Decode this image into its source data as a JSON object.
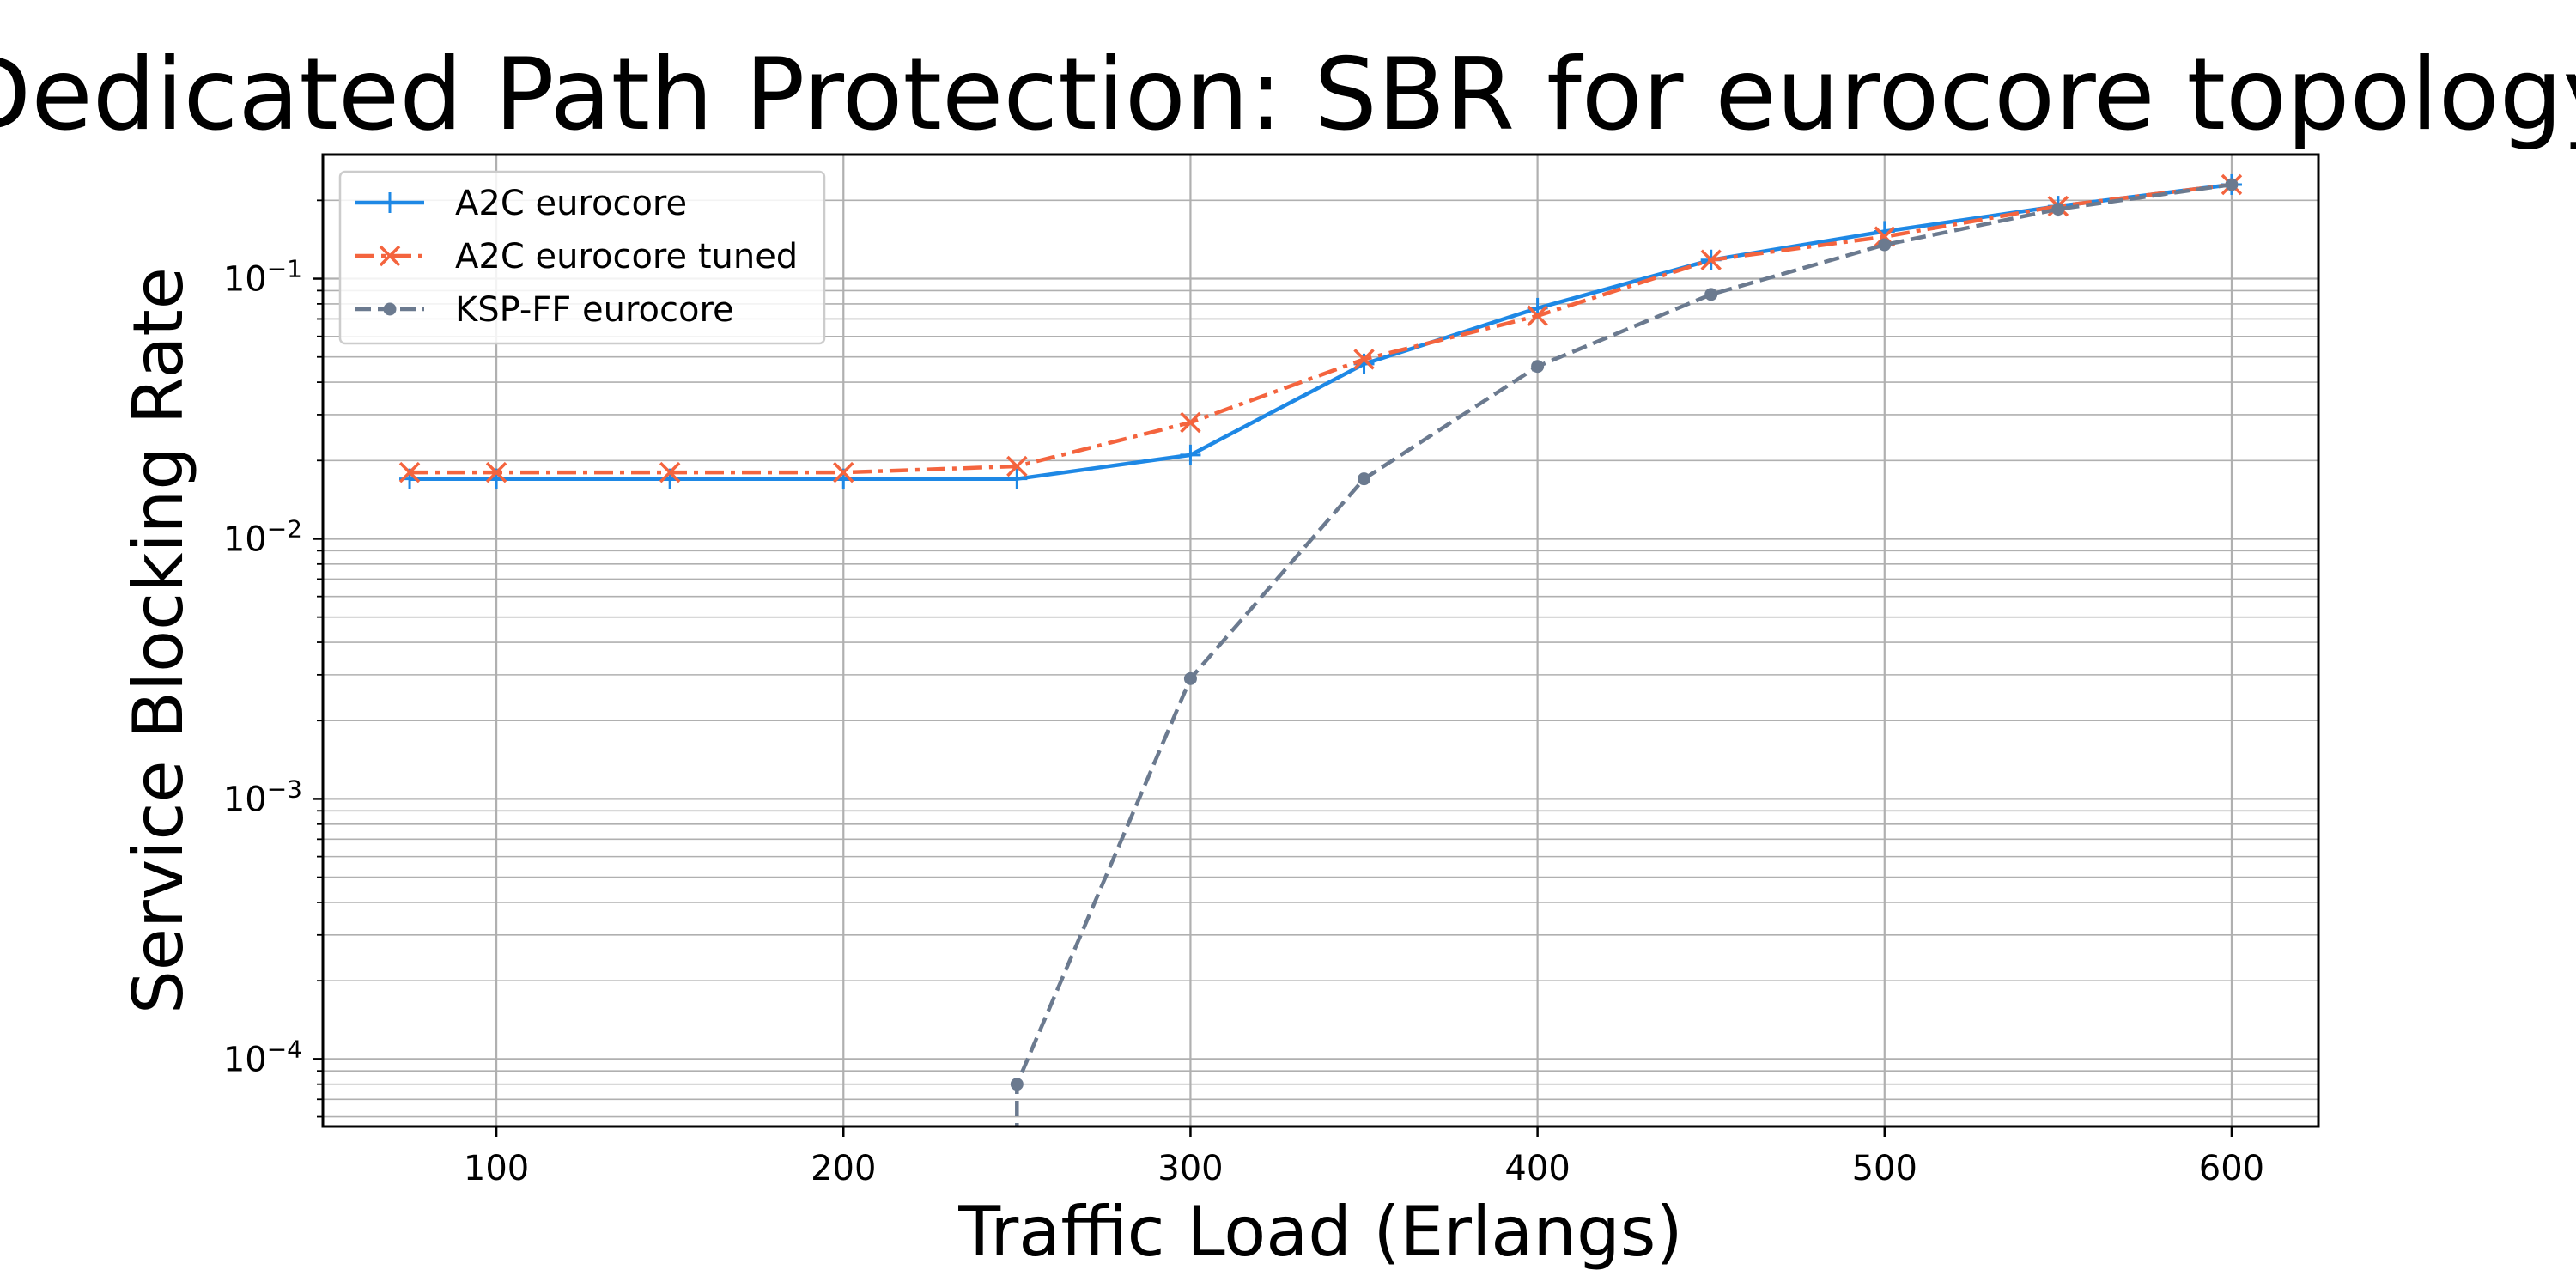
{
  "chart_data": {
    "type": "line",
    "title": "Dedicated Path Protection: SBR for eurocore topology",
    "xlabel": "Traffic Load (Erlangs)",
    "ylabel": "Service Blocking Rate",
    "xscale": "linear",
    "yscale": "log",
    "xlim": [
      50,
      625
    ],
    "ylim": [
      5.5e-05,
      0.3
    ],
    "xticks": [
      100,
      200,
      300,
      400,
      500,
      600
    ],
    "yticks": [
      {
        "value": 0.0001,
        "base": "10",
        "exp": "−4"
      },
      {
        "value": 0.001,
        "base": "10",
        "exp": "−3"
      },
      {
        "value": 0.01,
        "base": "10",
        "exp": "−2"
      },
      {
        "value": 0.1,
        "base": "10",
        "exp": "−1"
      }
    ],
    "grid": true,
    "legend_position": "top-left",
    "series": [
      {
        "name": "A2C eurocore",
        "color": "#1e88e5",
        "line_style": "solid",
        "marker": "plus",
        "x": [
          75,
          100,
          150,
          200,
          250,
          300,
          350,
          400,
          450,
          500,
          550,
          600
        ],
        "y": [
          0.017,
          0.017,
          0.017,
          0.017,
          0.017,
          0.021,
          0.047,
          0.077,
          0.118,
          0.152,
          0.19,
          0.23
        ]
      },
      {
        "name": "A2C eurocore tuned",
        "color": "#f4643e",
        "line_style": "dashdot",
        "marker": "x",
        "x": [
          75,
          100,
          150,
          200,
          250,
          300,
          350,
          400,
          450,
          500,
          550,
          600
        ],
        "y": [
          0.018,
          0.018,
          0.018,
          0.018,
          0.019,
          0.028,
          0.049,
          0.072,
          0.118,
          0.145,
          0.19,
          0.23
        ]
      },
      {
        "name": "KSP-FF eurocore",
        "color": "#6b7a8f",
        "line_style": "dashed",
        "marker": "dot",
        "x": [
          250,
          300,
          350,
          400,
          450,
          500,
          550,
          600
        ],
        "y": [
          8e-05,
          0.0029,
          0.017,
          0.046,
          0.087,
          0.135,
          0.185,
          0.23
        ]
      }
    ]
  }
}
